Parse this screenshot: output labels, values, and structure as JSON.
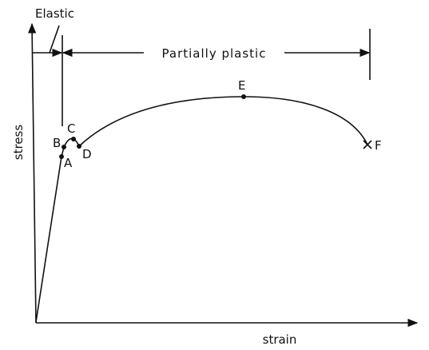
{
  "annotations": {
    "elastic": "Elastic",
    "partially_plastic": "Partially plastic"
  },
  "axes": {
    "y": "stress",
    "x": "strain"
  },
  "points": [
    {
      "label": "A"
    },
    {
      "label": "B"
    },
    {
      "label": "C"
    },
    {
      "label": "D"
    },
    {
      "label": "E"
    },
    {
      "label": "F"
    }
  ]
}
